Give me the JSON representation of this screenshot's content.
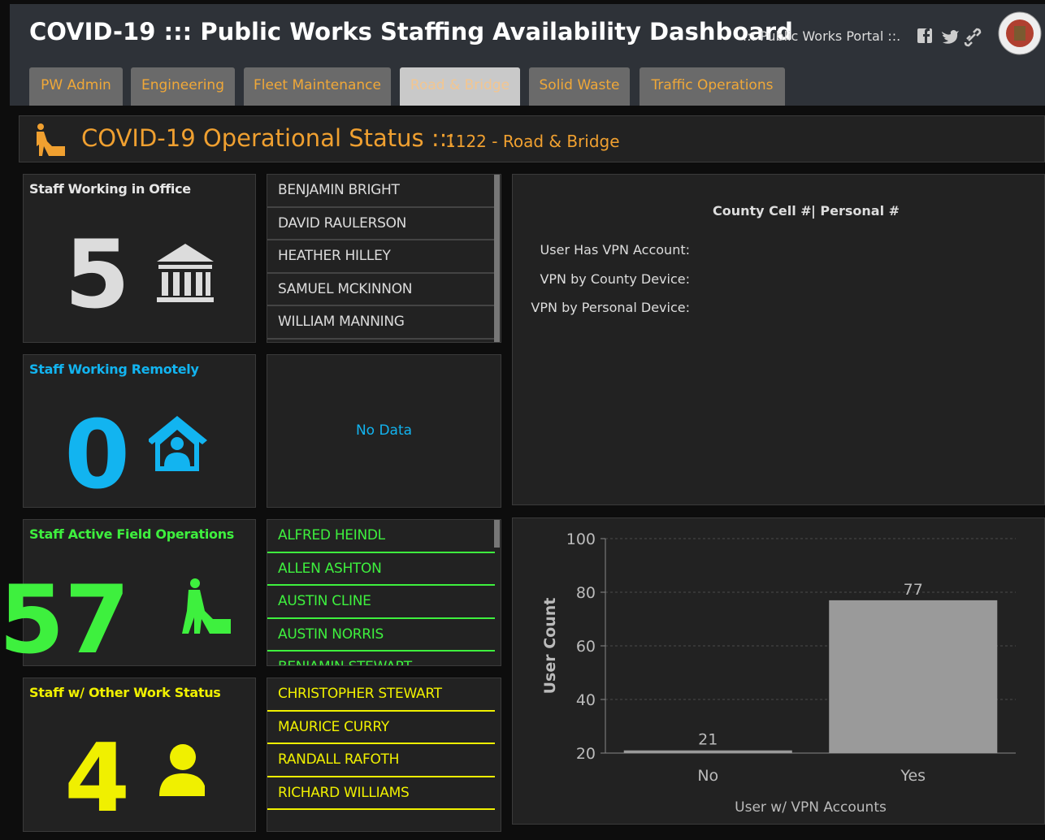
{
  "header": {
    "title": "COVID-19 ::: Public Works Staffing Availability Dashboard",
    "portal_label": ".:: Public Works Portal ::."
  },
  "tabs": [
    "PW Admin",
    "Engineering",
    "Fleet Maintenance",
    "Road & Bridge",
    "Solid Waste",
    "Traffic Operations"
  ],
  "active_tab": 3,
  "status": {
    "title": "COVID-19 Operational Status :::",
    "subtitle": "1122 - Road & Bridge"
  },
  "panels": [
    {
      "label": "Staff Working in Office",
      "count": 5,
      "color": "#dcdcdc",
      "names": [
        "BENJAMIN BRIGHT",
        "DAVID RAULERSON",
        "HEATHER HILLEY",
        "SAMUEL MCKINNON",
        "WILLIAM MANNING"
      ]
    },
    {
      "label": "Staff Working Remotely",
      "count": 0,
      "color": "#12b4f0",
      "names": [],
      "empty_text": "No Data"
    },
    {
      "label": "Staff Active Field Operations",
      "count": 57,
      "color": "#3ef03e",
      "names": [
        "ALFRED HEINDL",
        "ALLEN ASHTON",
        "AUSTIN CLINE",
        "AUSTIN NORRIS",
        "BENJAMIN STEWART"
      ]
    },
    {
      "label": "Staff w/ Other Work Status",
      "count": 4,
      "color": "#f0f000",
      "names": [
        "CHRISTOPHER STEWART",
        "MAURICE CURRY",
        "RANDALL RAFOTH",
        "RICHARD WILLIAMS"
      ]
    }
  ],
  "contact": {
    "headers": [
      "County Cell #",
      "| Personal #"
    ],
    "rows": [
      "User Has VPN Account:",
      "VPN by County Device:",
      "VPN by Personal Device:"
    ]
  },
  "chart_data": {
    "type": "bar",
    "categories": [
      "No",
      "Yes"
    ],
    "values": [
      21,
      77
    ],
    "color": "#9a9a9a",
    "xlabel": "User w/ VPN Accounts",
    "ylabel": "User Count",
    "ylim": [
      20,
      100
    ],
    "yticks": [
      20,
      40,
      60,
      80,
      100
    ],
    "grid": true
  }
}
